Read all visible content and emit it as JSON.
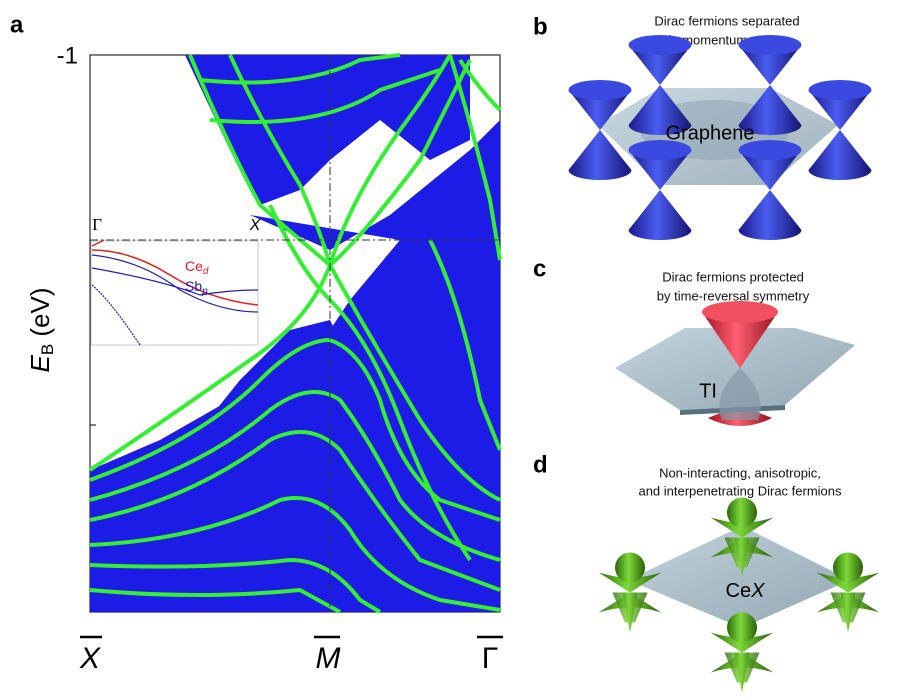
{
  "panels": {
    "a": {
      "label": "a",
      "y_axis": {
        "tick_label": "-1",
        "title_main": "E",
        "title_sub": "B",
        "title_unit": " (eV)"
      },
      "x_ticks": [
        "X",
        "M",
        "Γ"
      ],
      "inset": {
        "x_labels": [
          "Γ",
          "X"
        ],
        "legend": [
          {
            "main": "Ce",
            "sub": "d"
          },
          {
            "main": "Sb",
            "sub": "p"
          }
        ]
      }
    },
    "b": {
      "label": "b",
      "caption": [
        "Dirac fermions separated",
        "in momentum space"
      ],
      "surface": "Graphene"
    },
    "c": {
      "label": "c",
      "caption": [
        "Dirac fermions protected",
        "by time-reversal symmetry"
      ],
      "surface": "TI"
    },
    "d": {
      "label": "d",
      "caption": [
        "Non-interacting, anisotropic,",
        "and interpenetrating Dirac fermions"
      ],
      "surface": {
        "main": "Ce",
        "var": "X"
      }
    }
  }
}
